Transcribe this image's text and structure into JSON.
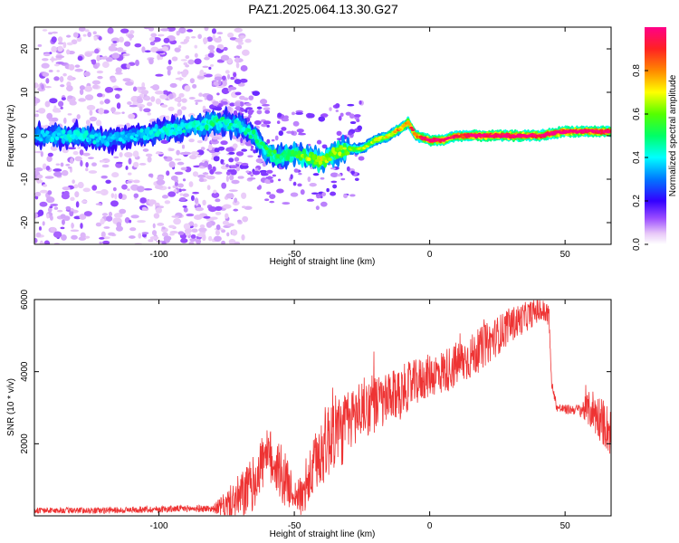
{
  "chart_data": [
    {
      "type": "heatmap",
      "title": "PAZ1.2025.064.13.30.G27",
      "xlabel": "Height of straight line (km)",
      "ylabel": "Frequency (Hz)",
      "xlim": [
        -146,
        67
      ],
      "ylim": [
        -25,
        25
      ],
      "xticks": [
        -100,
        -50,
        0,
        50
      ],
      "yticks": [
        -20,
        -10,
        0,
        10,
        20
      ],
      "colorbar": {
        "label": "Normalized spectral amplitude",
        "range": [
          0,
          1
        ],
        "ticks": [
          "0.0",
          "0.2",
          "0.4",
          "0.6",
          "0.8"
        ]
      },
      "ridge": {
        "x": [
          -140,
          -130,
          -120,
          -110,
          -100,
          -90,
          -80,
          -75,
          -70,
          -65,
          -60,
          -55,
          -50,
          -45,
          -40,
          -35,
          -30,
          -25,
          -20,
          -15,
          -10,
          -8,
          -5,
          0,
          5,
          10,
          20,
          30,
          40,
          50,
          60,
          67
        ],
        "freq": [
          0,
          0,
          -1,
          0,
          1,
          2,
          3,
          3,
          2,
          0,
          -4,
          -5,
          -4,
          -5,
          -6,
          -4,
          -3,
          -3,
          -1,
          0,
          2,
          3,
          0,
          -1,
          -1,
          0,
          0,
          0,
          0,
          1,
          1,
          1
        ],
        "amplitude": [
          0.25,
          0.3,
          0.25,
          0.25,
          0.3,
          0.3,
          0.35,
          0.35,
          0.3,
          0.35,
          0.4,
          0.4,
          0.45,
          0.5,
          0.55,
          0.55,
          0.5,
          0.5,
          0.55,
          0.6,
          0.7,
          0.75,
          0.75,
          0.95,
          0.85,
          0.8,
          0.95,
          0.95,
          0.9,
          0.92,
          0.9,
          0.85
        ]
      },
      "scatter_until_km": -75,
      "colors": {
        "low": "#e8c8f8",
        "mid": "#6600ee",
        "high": "#ff2a2a"
      }
    },
    {
      "type": "line",
      "xlabel": "Height of straight line (km)",
      "ylabel": "SNR (10 * v/v)",
      "xlim": [
        -146,
        67
      ],
      "ylim": [
        0,
        6000
      ],
      "xticks": [
        -100,
        -50,
        0,
        50
      ],
      "yticks": [
        2000,
        4000,
        6000
      ],
      "color": "#ee3333",
      "envelope": {
        "x": [
          -146,
          -120,
          -90,
          -80,
          -75,
          -70,
          -65,
          -62,
          -58,
          -55,
          -50,
          -47,
          -42,
          -40,
          -37,
          -35,
          -33,
          -30,
          -25,
          -20,
          -15,
          -10,
          -5,
          0,
          5,
          10,
          15,
          20,
          25,
          30,
          35,
          40,
          44,
          45,
          47,
          50,
          55,
          60,
          63,
          67
        ],
        "snr": [
          150,
          150,
          200,
          200,
          300,
          500,
          900,
          1500,
          1600,
          1200,
          600,
          500,
          1500,
          1800,
          2200,
          2500,
          2300,
          2600,
          3000,
          3100,
          3200,
          3500,
          3700,
          3900,
          4000,
          4200,
          4400,
          4700,
          5000,
          5300,
          5500,
          5700,
          5600,
          3700,
          3000,
          2950,
          2950,
          2950,
          2700,
          2300
        ]
      },
      "noise_amplitude": {
        "x": [
          -146,
          -80,
          -70,
          -55,
          -50,
          -42,
          -36,
          -30,
          -20,
          -10,
          0,
          10,
          20,
          30,
          40,
          44,
          45,
          55,
          60,
          67
        ],
        "amp": [
          80,
          100,
          700,
          900,
          400,
          900,
          1200,
          900,
          800,
          700,
          600,
          650,
          600,
          500,
          350,
          350,
          120,
          150,
          600,
          700
        ]
      }
    }
  ]
}
